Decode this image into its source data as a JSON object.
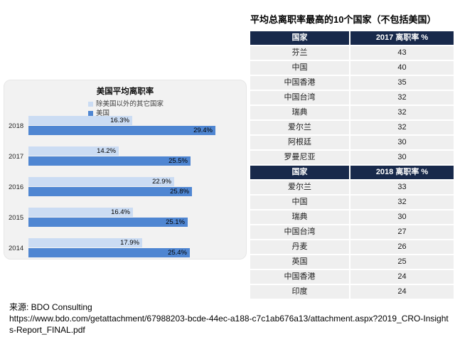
{
  "chart_data": [
    {
      "type": "bar",
      "orientation": "horizontal",
      "title": "美国平均离职率",
      "categories": [
        "2018",
        "2017",
        "2016",
        "2015",
        "2014"
      ],
      "series": [
        {
          "name": "除美国以外的其它国家",
          "color": "#cbdcf3",
          "values": [
            16.3,
            14.2,
            22.9,
            16.4,
            17.9
          ]
        },
        {
          "name": "美国",
          "color": "#4f86d2",
          "values": [
            29.4,
            25.5,
            25.8,
            25.1,
            25.4
          ]
        }
      ],
      "value_suffix": "%",
      "xlim": [
        0,
        30
      ],
      "grid": false,
      "legend_position": "top-stacked",
      "value_labels": "inside-end",
      "panel_background": "#f2f2f2"
    },
    {
      "type": "table",
      "title": "平均总离职率最高的10个国家（不包括美国）",
      "sections": [
        {
          "headers": [
            "国家",
            "2017 离职率 %"
          ],
          "rows": [
            [
              "芬兰",
              43
            ],
            [
              "中国",
              40
            ],
            [
              "中国香港",
              35
            ],
            [
              "中国台湾",
              32
            ],
            [
              "瑞典",
              32
            ],
            [
              "爱尔兰",
              32
            ],
            [
              "阿根廷",
              30
            ],
            [
              "罗曼尼亚",
              30
            ]
          ]
        },
        {
          "headers": [
            "国家",
            "2018 离职率 %"
          ],
          "rows": [
            [
              "爱尔兰",
              33
            ],
            [
              "中国",
              32
            ],
            [
              "瑞典",
              30
            ],
            [
              "中国台湾",
              27
            ],
            [
              "丹麦",
              26
            ],
            [
              "英国",
              25
            ],
            [
              "中国香港",
              24
            ],
            [
              "印度",
              24
            ]
          ]
        }
      ],
      "header_background": "#18294b",
      "row_background": "#efefef"
    }
  ],
  "source": {
    "label": "来源: BDO Consulting",
    "url": "https://www.bdo.com/getattachment/67988203-bcde-44ec-a188-c7c1ab676a13/attachment.aspx?2019_CRO-Insights-Report_FINAL.pdf"
  },
  "colors": {
    "header_navy": "#18294b",
    "row_gray": "#efefef",
    "panel_gray": "#f2f2f2",
    "bar_light_blue": "#cbdcf3",
    "bar_dark_blue": "#4f86d2"
  }
}
